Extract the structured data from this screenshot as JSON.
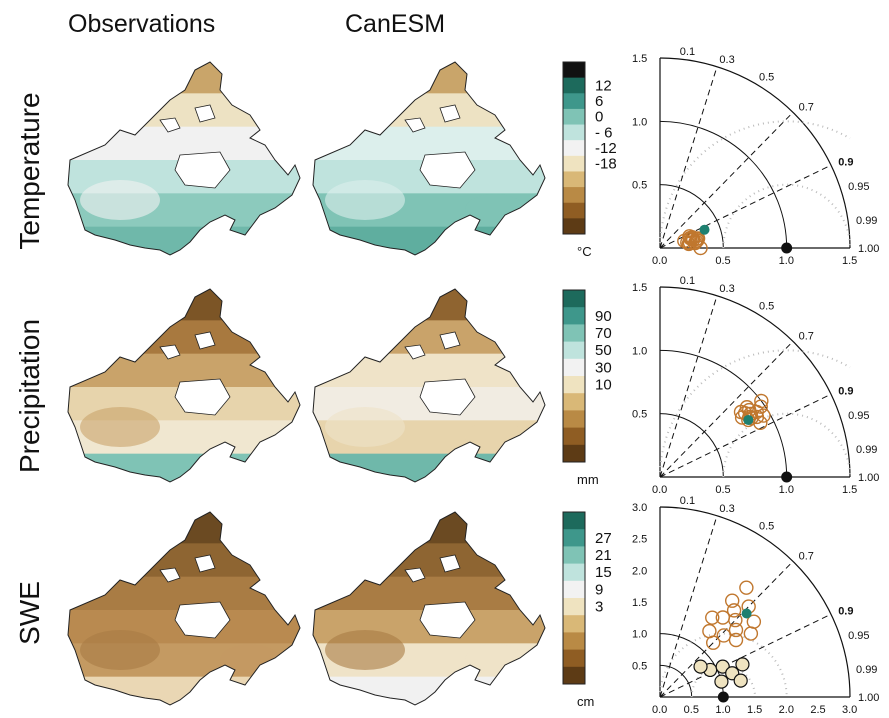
{
  "columns": {
    "observations": "Observations",
    "canesm": "CanESM"
  },
  "rows": {
    "temperature": "Temperature",
    "precipitation": "Precipitation",
    "swe": "SWE"
  },
  "colorbars": {
    "temperature": {
      "ticks": [
        "12",
        "6",
        "0",
        "- 6",
        "-12",
        "-18"
      ],
      "unit": "°C",
      "colors": [
        "#111111",
        "#1d6a5c",
        "#3e978b",
        "#7fc3b5",
        "#bfe3dd",
        "#f2f2f2",
        "#efe3c0",
        "#d9b877",
        "#b98a45",
        "#8f5d23",
        "#5d3b15"
      ]
    },
    "precipitation": {
      "ticks": [
        "90",
        "70",
        "50",
        "30",
        "10"
      ],
      "unit": "mm",
      "colors": [
        "#1d6a5c",
        "#3e978b",
        "#7fc3b5",
        "#bfe3dd",
        "#f2f2f2",
        "#efe3c0",
        "#d9b877",
        "#b98a45",
        "#8f5d23",
        "#5d3b15"
      ]
    },
    "swe": {
      "ticks": [
        "27",
        "21",
        "15",
        "9",
        "3"
      ],
      "unit": "cm",
      "colors": [
        "#1d6a5c",
        "#3e978b",
        "#7fc3b5",
        "#bfe3dd",
        "#f2f2f2",
        "#efe3c0",
        "#d9b877",
        "#b98a45",
        "#8f5d23",
        "#5d3b15"
      ]
    }
  },
  "taylor": [
    {
      "axis_ticks": [
        "0.0",
        "0.5",
        "1.0",
        "1.5"
      ],
      "max": 1.5,
      "corr_labels": [
        "0.1",
        "0.3",
        "0.5",
        "0.7",
        "0.9",
        "0.95",
        "0.99",
        "1.00"
      ],
      "ref": 1.0,
      "points": [
        [
          0.22,
          0.98
        ],
        [
          0.27,
          0.97
        ],
        [
          0.3,
          0.97
        ],
        [
          0.25,
          0.95
        ],
        [
          0.32,
          1.0
        ],
        [
          0.28,
          0.99
        ],
        [
          0.2,
          0.96
        ],
        [
          0.24,
          0.985
        ],
        [
          0.26,
          0.96
        ],
        [
          0.3,
          0.98
        ],
        [
          0.27,
          0.95
        ],
        [
          0.23,
          0.99
        ],
        [
          0.31,
          0.97
        ],
        [
          0.25,
          0.93
        ],
        [
          0.29,
          0.985
        ]
      ],
      "model": [
        0.38,
        0.925
      ],
      "model_color": "#1e8070",
      "obs_color": "#c0772e"
    },
    {
      "axis_ticks": [
        "0.0",
        "0.5",
        "1.0",
        "1.5"
      ],
      "max": 1.5,
      "corr_labels": [
        "0.1",
        "0.3",
        "0.5",
        "0.7",
        "0.9",
        "0.95",
        "0.99",
        "1.00"
      ],
      "ref": 1.0,
      "points": [
        [
          0.85,
          0.83
        ],
        [
          0.87,
          0.82
        ],
        [
          0.84,
          0.8
        ],
        [
          0.9,
          0.85
        ],
        [
          0.82,
          0.78
        ],
        [
          0.88,
          0.8
        ],
        [
          0.86,
          0.84
        ],
        [
          0.95,
          0.86
        ],
        [
          0.8,
          0.81
        ],
        [
          0.92,
          0.83
        ],
        [
          0.9,
          0.88
        ],
        [
          0.83,
          0.84
        ],
        [
          0.97,
          0.82
        ],
        [
          1.0,
          0.8
        ],
        [
          0.88,
          0.78
        ]
      ],
      "model": [
        0.83,
        0.84
      ],
      "model_color": "#1e8070",
      "obs_color": "#c0772e"
    },
    {
      "axis_ticks": [
        "0.0",
        "0.5",
        "1.0",
        "1.5",
        "2.0",
        "2.5",
        "3.0"
      ],
      "max": 3.0,
      "corr_labels": [
        "0.1",
        "0.3",
        "0.5",
        "0.7",
        "0.9",
        "0.95",
        "0.99",
        "1.00"
      ],
      "ref": 1.0,
      "points": [
        [
          1.6,
          0.75
        ],
        [
          1.7,
          0.7
        ],
        [
          1.9,
          0.78
        ],
        [
          1.5,
          0.8
        ],
        [
          1.8,
          0.65
        ],
        [
          2.0,
          0.7
        ],
        [
          1.4,
          0.72
        ],
        [
          1.6,
          0.62
        ],
        [
          1.3,
          0.6
        ],
        [
          1.75,
          0.82
        ],
        [
          2.2,
          0.62
        ],
        [
          1.5,
          0.55
        ],
        [
          1.2,
          0.7
        ],
        [
          1.9,
          0.6
        ]
      ],
      "filled_points": [
        [
          0.9,
          0.88
        ],
        [
          1.1,
          0.9
        ],
        [
          1.2,
          0.95
        ],
        [
          1.0,
          0.97
        ],
        [
          0.8,
          0.8
        ],
        [
          1.3,
          0.98
        ],
        [
          1.4,
          0.93
        ]
      ],
      "model": [
        1.9,
        0.72
      ],
      "model_color": "#1e8070",
      "obs_color": "#c0772e"
    }
  ]
}
